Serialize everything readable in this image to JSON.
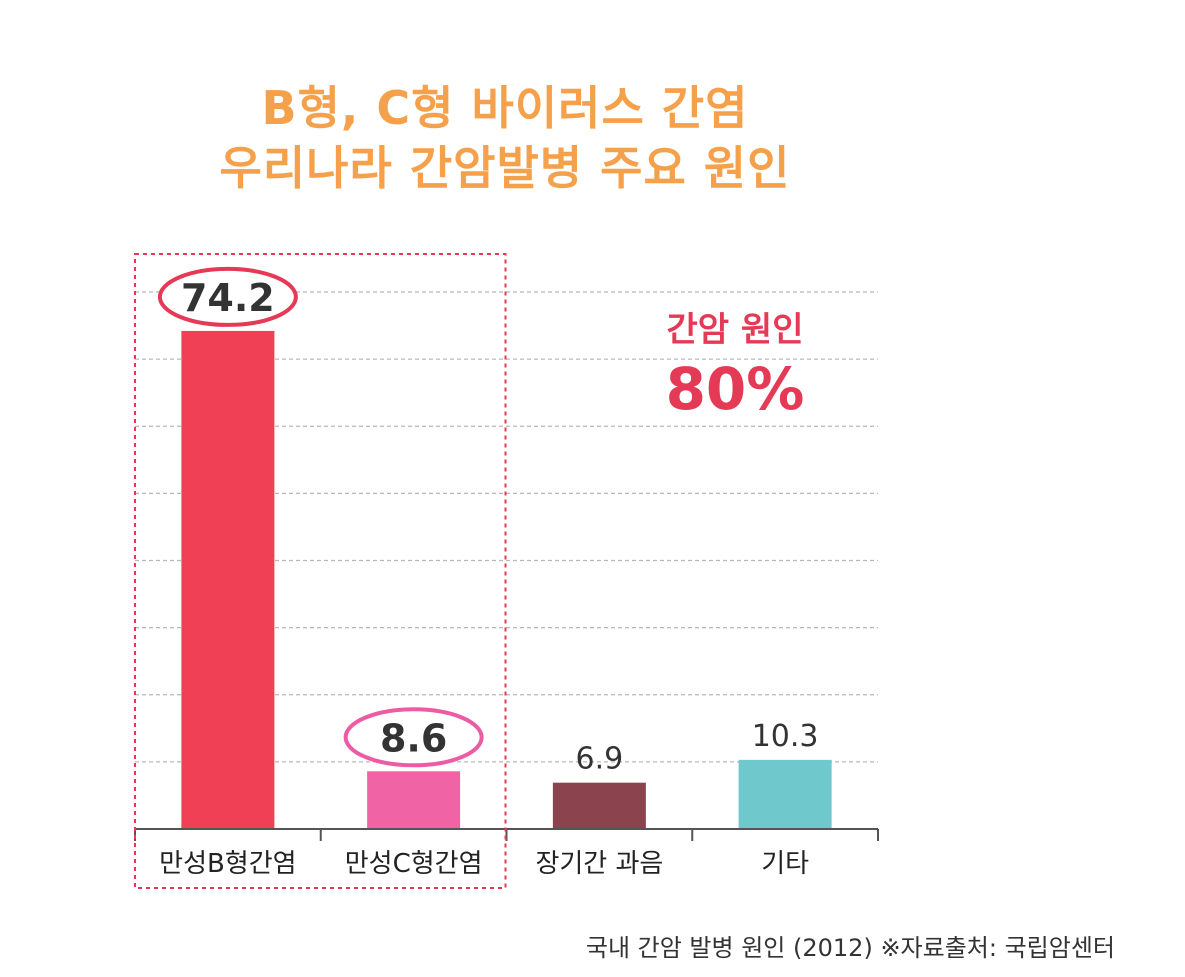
{
  "title": {
    "line1": "B형, C형 바이러스 간염",
    "line2": "우리나라 간암발병 주요 원인"
  },
  "callout": {
    "label": "간암 원인",
    "value": "80%"
  },
  "source": "국내 간암 발병 원인 (2012) ※자료출처: 국립암센터",
  "colors": {
    "title": "#f5a04a",
    "callout": "#e53a55",
    "highlight_box": "#e53a55",
    "grid": "#b8b8b8",
    "axis": "#555555"
  },
  "chart_data": {
    "type": "bar",
    "categories": [
      "만성B형간염",
      "만성C형간염",
      "장기간 과음",
      "기타"
    ],
    "values": [
      74.2,
      8.6,
      6.9,
      10.3
    ],
    "value_labels": [
      "74.2",
      "8.6",
      "6.9",
      "10.3"
    ],
    "bar_colors": [
      "#ef4055",
      "#f063a4",
      "#8b444e",
      "#6fc8cb"
    ],
    "circled_categories": [
      0,
      1
    ],
    "circle_colors": [
      "#e53a55",
      "#ec5ba3"
    ],
    "highlighted_group": [
      0,
      1
    ],
    "ylim": [
      0,
      80
    ],
    "grid_step": 10,
    "grid": true,
    "title": "",
    "xlabel": "",
    "ylabel": ""
  }
}
